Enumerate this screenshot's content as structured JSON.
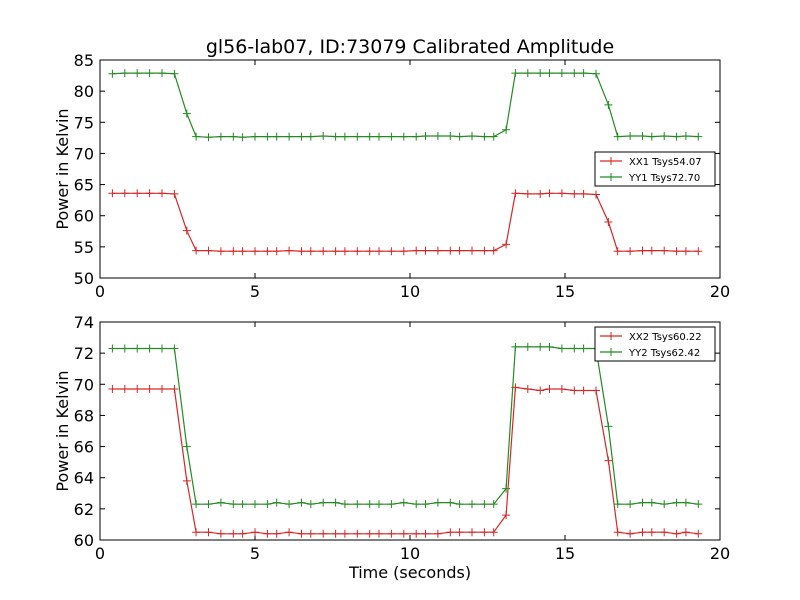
{
  "chart_data": [
    {
      "type": "line",
      "title": "gl56-lab07, ID:73079 Calibrated Amplitude",
      "xlabel": "",
      "ylabel": "Power in Kelvin",
      "xlim": [
        0,
        20
      ],
      "ylim": [
        50,
        85
      ],
      "xticks": [
        "0",
        "5",
        "10",
        "15",
        "20"
      ],
      "yticks": [
        "50",
        "55",
        "60",
        "65",
        "70",
        "75",
        "80",
        "85"
      ],
      "legend_position": "center-right",
      "x": [
        0.4,
        0.8,
        1.2,
        1.6,
        2.0,
        2.4,
        2.8,
        3.1,
        3.5,
        3.9,
        4.3,
        4.6,
        5.0,
        5.4,
        5.7,
        6.1,
        6.5,
        6.8,
        7.2,
        7.6,
        7.9,
        8.3,
        8.7,
        9.0,
        9.4,
        9.8,
        10.2,
        10.5,
        10.9,
        11.3,
        11.6,
        12.0,
        12.4,
        12.7,
        13.1,
        13.4,
        13.8,
        14.2,
        14.5,
        14.9,
        15.3,
        15.6,
        16.0,
        16.4,
        16.7,
        17.1,
        17.5,
        17.8,
        18.2,
        18.6,
        18.9,
        19.3
      ],
      "series": [
        {
          "name": "XX1 Tsys54.07",
          "color": "#d62728",
          "values": [
            63.6,
            63.6,
            63.6,
            63.6,
            63.6,
            63.5,
            57.6,
            54.4,
            54.4,
            54.3,
            54.3,
            54.3,
            54.3,
            54.3,
            54.3,
            54.4,
            54.3,
            54.3,
            54.3,
            54.3,
            54.3,
            54.3,
            54.3,
            54.3,
            54.3,
            54.3,
            54.4,
            54.4,
            54.4,
            54.4,
            54.4,
            54.4,
            54.4,
            54.4,
            55.4,
            63.6,
            63.5,
            63.5,
            63.6,
            63.6,
            63.5,
            63.5,
            63.4,
            59.0,
            54.3,
            54.3,
            54.4,
            54.4,
            54.4,
            54.3,
            54.3,
            54.3
          ]
        },
        {
          "name": "YY1 Tsys72.70",
          "color": "#228b22",
          "values": [
            82.8,
            82.9,
            82.9,
            82.9,
            82.9,
            82.8,
            76.4,
            72.7,
            72.6,
            72.7,
            72.7,
            72.6,
            72.7,
            72.7,
            72.7,
            72.7,
            72.7,
            72.7,
            72.8,
            72.7,
            72.7,
            72.7,
            72.7,
            72.7,
            72.7,
            72.7,
            72.7,
            72.8,
            72.8,
            72.8,
            72.7,
            72.8,
            72.7,
            72.7,
            73.8,
            82.9,
            82.9,
            82.9,
            82.9,
            82.9,
            82.9,
            82.9,
            82.8,
            77.8,
            72.7,
            72.8,
            72.8,
            72.7,
            72.8,
            72.7,
            72.8,
            72.7
          ]
        }
      ]
    },
    {
      "type": "line",
      "title": "",
      "xlabel": "Time (seconds)",
      "ylabel": "Power in Kelvin",
      "xlim": [
        0,
        20
      ],
      "ylim": [
        60,
        74
      ],
      "xticks": [
        "0",
        "5",
        "10",
        "15",
        "20"
      ],
      "yticks": [
        "60",
        "62",
        "64",
        "66",
        "68",
        "70",
        "72",
        "74"
      ],
      "legend_position": "top-right",
      "x": [
        0.4,
        0.8,
        1.2,
        1.6,
        2.0,
        2.4,
        2.8,
        3.1,
        3.5,
        3.9,
        4.3,
        4.6,
        5.0,
        5.4,
        5.7,
        6.1,
        6.5,
        6.8,
        7.2,
        7.6,
        7.9,
        8.3,
        8.7,
        9.0,
        9.4,
        9.8,
        10.2,
        10.5,
        10.9,
        11.3,
        11.6,
        12.0,
        12.4,
        12.7,
        13.1,
        13.4,
        13.8,
        14.2,
        14.5,
        14.9,
        15.3,
        15.6,
        16.0,
        16.4,
        16.7,
        17.1,
        17.5,
        17.8,
        18.2,
        18.6,
        18.9,
        19.3
      ],
      "series": [
        {
          "name": "XX2 Tsys60.22",
          "color": "#d62728",
          "values": [
            69.7,
            69.7,
            69.7,
            69.7,
            69.7,
            69.7,
            63.8,
            60.5,
            60.5,
            60.4,
            60.4,
            60.4,
            60.5,
            60.4,
            60.4,
            60.5,
            60.4,
            60.4,
            60.4,
            60.4,
            60.4,
            60.4,
            60.4,
            60.4,
            60.4,
            60.4,
            60.4,
            60.4,
            60.4,
            60.5,
            60.5,
            60.5,
            60.5,
            60.5,
            61.6,
            69.8,
            69.7,
            69.6,
            69.7,
            69.7,
            69.6,
            69.6,
            69.6,
            65.1,
            60.5,
            60.4,
            60.5,
            60.5,
            60.5,
            60.4,
            60.5,
            60.4
          ]
        },
        {
          "name": "YY2 Tsys62.42",
          "color": "#228b22",
          "values": [
            72.3,
            72.3,
            72.3,
            72.3,
            72.3,
            72.3,
            66.0,
            62.3,
            62.3,
            62.4,
            62.3,
            62.3,
            62.3,
            62.3,
            62.4,
            62.3,
            62.4,
            62.3,
            62.4,
            62.4,
            62.3,
            62.3,
            62.3,
            62.3,
            62.3,
            62.4,
            62.3,
            62.3,
            62.4,
            62.4,
            62.3,
            62.3,
            62.3,
            62.3,
            63.3,
            72.4,
            72.4,
            72.4,
            72.4,
            72.3,
            72.3,
            72.3,
            72.3,
            67.3,
            62.3,
            62.3,
            62.4,
            62.4,
            62.3,
            62.4,
            62.4,
            62.3
          ]
        }
      ]
    }
  ]
}
